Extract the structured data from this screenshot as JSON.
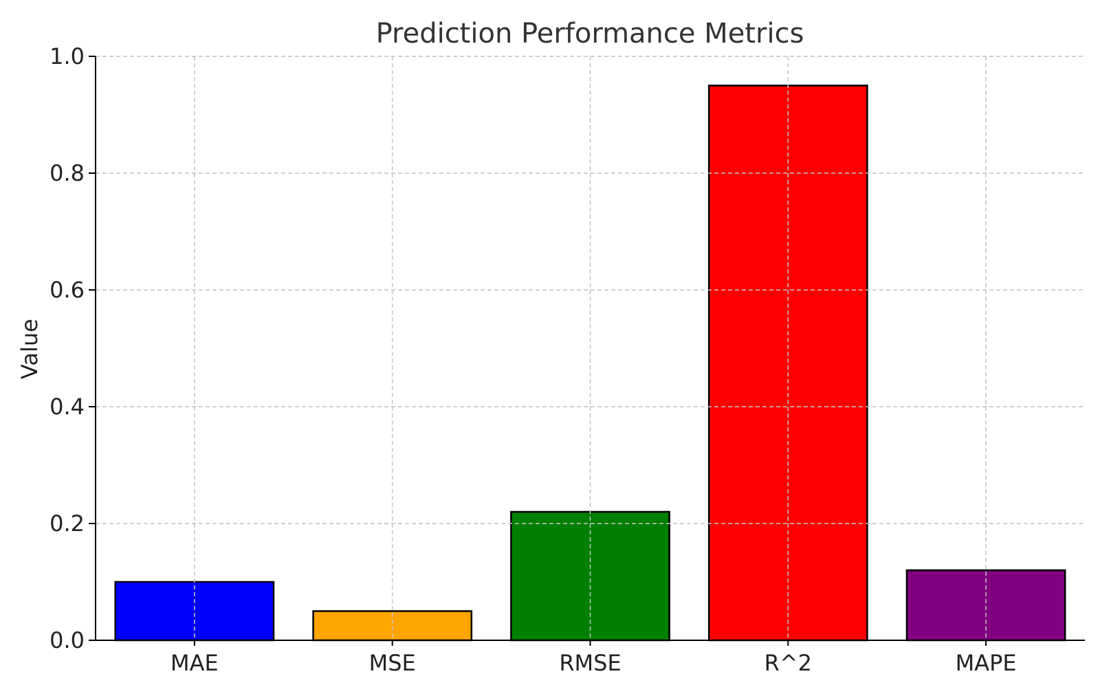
{
  "chart_data": {
    "type": "bar",
    "title": "Prediction Performance Metrics",
    "xlabel": "",
    "ylabel": "Value",
    "categories": [
      "MAE",
      "MSE",
      "RMSE",
      "R^2",
      "MAPE"
    ],
    "values": [
      0.1,
      0.05,
      0.22,
      0.95,
      0.12
    ],
    "colors": [
      "#0000ff",
      "#ffa500",
      "#008000",
      "#ff0000",
      "#800080"
    ],
    "edge_color": "#000000",
    "ylim": [
      0.0,
      1.0
    ],
    "yticks": [
      "0.0",
      "0.2",
      "0.4",
      "0.6",
      "0.8",
      "1.0"
    ],
    "grid": true,
    "grid_color": "#c8c8c8"
  }
}
